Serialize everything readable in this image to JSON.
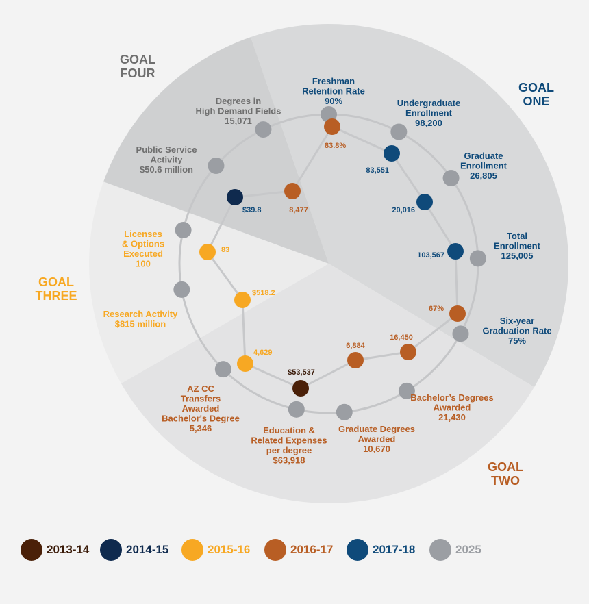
{
  "chart_data": {
    "type": "radial",
    "colors": {
      "2013-14": "#4a2008",
      "2014-15": "#0f2a4e",
      "2015-16": "#f7a823",
      "2016-17": "#b85e24",
      "2017-18": "#0f4a7a",
      "2025": "#9b9ea3",
      "goal_one": "#0f4a7a",
      "goal_two": "#b85e24",
      "goal_three": "#f7a823",
      "goal_four": "#6f6f6f"
    },
    "goals": {
      "one": [
        "GOAL",
        "ONE"
      ],
      "two": [
        "GOAL",
        "TWO"
      ],
      "three": [
        "GOAL",
        "THREE"
      ],
      "four": [
        "GOAL",
        "FOUR"
      ]
    },
    "metrics": [
      {
        "id": "freshman_retention",
        "goal": "one",
        "label": [
          "Freshman",
          "Retention Rate",
          "90%"
        ],
        "current_value": "83.8%",
        "current_year": "2016-17"
      },
      {
        "id": "undergrad_enrollment",
        "goal": "one",
        "label": [
          "Undergraduate",
          "Enrollment",
          "98,200"
        ],
        "current_value": "83,551",
        "current_year": "2017-18"
      },
      {
        "id": "grad_enrollment",
        "goal": "one",
        "label": [
          "Graduate",
          "Enrollment",
          "26,805"
        ],
        "current_value": "20,016",
        "current_year": "2017-18"
      },
      {
        "id": "total_enrollment",
        "goal": "one",
        "label": [
          "Total",
          "Enrollment",
          "125,005"
        ],
        "current_value": "103,567",
        "current_year": "2017-18"
      },
      {
        "id": "graduation_rate",
        "goal": "one",
        "label": [
          "Six-year",
          "Graduation Rate",
          "75%"
        ],
        "current_value": "67%",
        "current_year": "2016-17"
      },
      {
        "id": "bachelors_awarded",
        "goal": "two",
        "label": [
          "Bachelor’s Degrees",
          "Awarded",
          "21,430"
        ],
        "current_value": "16,450",
        "current_year": "2016-17"
      },
      {
        "id": "grad_degrees",
        "goal": "two",
        "label": [
          "Graduate Degrees",
          "Awarded",
          "10,670"
        ],
        "current_value": "6,884",
        "current_year": "2016-17"
      },
      {
        "id": "education_expenses",
        "goal": "two",
        "label": [
          "Education &",
          "Related Expenses",
          "per degree",
          "$63,918"
        ],
        "current_value": "$53,537",
        "current_year": "2013-14"
      },
      {
        "id": "azcc_transfers",
        "goal": "two",
        "label": [
          "AZ CC",
          "Transfers",
          "Awarded",
          "Bachelor's Degree",
          "5,346"
        ],
        "current_value": "4,629",
        "current_year": "2015-16"
      },
      {
        "id": "research_activity",
        "goal": "three",
        "label": [
          "Research Activity",
          "$815 million"
        ],
        "current_value": "$518.2",
        "current_year": "2015-16"
      },
      {
        "id": "licenses",
        "goal": "three",
        "label": [
          "Licenses",
          "& Options",
          "Executed",
          "100"
        ],
        "current_value": "83",
        "current_year": "2015-16"
      },
      {
        "id": "public_service",
        "goal": "four",
        "label": [
          "Public Service",
          "Activity",
          "$50.6 million"
        ],
        "current_value": "$39.8",
        "current_year": "2014-15"
      },
      {
        "id": "high_demand",
        "goal": "four",
        "label": [
          "Degrees in",
          "High Demand Fields",
          "15,071"
        ],
        "current_value": "8,477",
        "current_year": "2016-17"
      }
    ],
    "legend": [
      "2013-14",
      "2014-15",
      "2015-16",
      "2016-17",
      "2017-18",
      "2025"
    ]
  }
}
